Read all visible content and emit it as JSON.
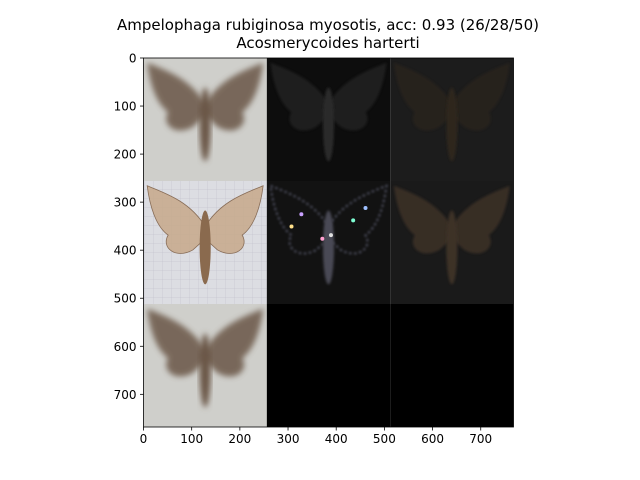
{
  "chart_data": {
    "type": "image-grid",
    "title": "Ampelophaga rubiginosa myosotis, acc: 0.93 (26/28/50)",
    "subtitle": "Acosmerycoides harterti",
    "x_ticks": [
      0,
      100,
      200,
      300,
      400,
      500,
      600,
      700
    ],
    "y_ticks": [
      0,
      100,
      200,
      300,
      400,
      500,
      600,
      700
    ],
    "xlim": [
      0,
      768
    ],
    "ylim": [
      768,
      0
    ],
    "grid": {
      "rows": 3,
      "cols": 3,
      "cell_size": 256
    },
    "tiles": [
      {
        "row": 0,
        "col": 0,
        "content": "blurred moth",
        "bg": "#cfcfcb",
        "moth": "#6a5746"
      },
      {
        "row": 0,
        "col": 1,
        "content": "dark noise saliency",
        "bg": "#0d0d0d",
        "moth": "#2a2a2a"
      },
      {
        "row": 0,
        "col": 2,
        "content": "dark moth overlay",
        "bg": "#1c1c1c",
        "moth": "#2e261f"
      },
      {
        "row": 1,
        "col": 0,
        "content": "moth photo on grid",
        "bg": "#dcdde2",
        "moth": "#a07a5c"
      },
      {
        "row": 1,
        "col": 1,
        "content": "sparse colored saliency",
        "bg": "#121212",
        "moth": "#4a4a55"
      },
      {
        "row": 1,
        "col": 2,
        "content": "masked moth",
        "bg": "#1a1a1a",
        "moth": "#3c3028"
      },
      {
        "row": 2,
        "col": 0,
        "content": "blurred moth",
        "bg": "#cfcfcb",
        "moth": "#6a5746"
      },
      {
        "row": 2,
        "col": 1,
        "content": "black",
        "bg": "#000000",
        "moth": ""
      },
      {
        "row": 2,
        "col": 2,
        "content": "black",
        "bg": "#000000",
        "moth": ""
      }
    ]
  }
}
